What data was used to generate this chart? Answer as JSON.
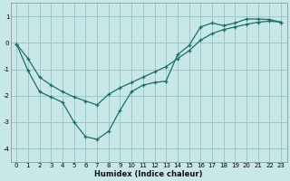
{
  "xlabel": "Humidex (Indice chaleur)",
  "background_color": "#c8e8e8",
  "grid_color": "#a0c8c8",
  "line_color": "#1a7068",
  "xlim": [
    -0.5,
    23.5
  ],
  "ylim": [
    -4.5,
    1.5
  ],
  "xticks": [
    0,
    1,
    2,
    3,
    4,
    5,
    6,
    7,
    8,
    9,
    10,
    11,
    12,
    13,
    14,
    15,
    16,
    17,
    18,
    19,
    20,
    21,
    22,
    23
  ],
  "yticks": [
    -4,
    -3,
    -2,
    -1,
    0,
    1
  ],
  "line1_x": [
    0,
    1,
    2,
    3,
    4,
    5,
    6,
    7,
    8,
    9,
    10,
    11,
    12,
    13,
    14,
    15,
    16,
    17,
    18,
    19,
    20,
    21,
    22,
    23
  ],
  "line1_y": [
    -0.05,
    -1.05,
    -1.85,
    -2.05,
    -2.25,
    -3.0,
    -3.55,
    -3.65,
    -3.35,
    -2.55,
    -1.85,
    -1.6,
    -1.5,
    -1.45,
    -0.45,
    -0.1,
    0.6,
    0.75,
    0.65,
    0.75,
    0.9,
    0.9,
    0.88,
    0.78
  ],
  "line2_x": [
    0,
    1,
    2,
    3,
    4,
    5,
    6,
    7,
    8,
    9,
    10,
    11,
    12,
    13,
    14,
    15,
    16,
    17,
    18,
    19,
    20,
    21,
    22,
    23
  ],
  "line2_y": [
    -0.05,
    -0.6,
    -1.3,
    -1.6,
    -1.85,
    -2.05,
    -2.2,
    -2.35,
    -1.95,
    -1.7,
    -1.5,
    -1.3,
    -1.1,
    -0.9,
    -0.6,
    -0.3,
    0.1,
    0.35,
    0.5,
    0.6,
    0.7,
    0.78,
    0.82,
    0.78
  ]
}
